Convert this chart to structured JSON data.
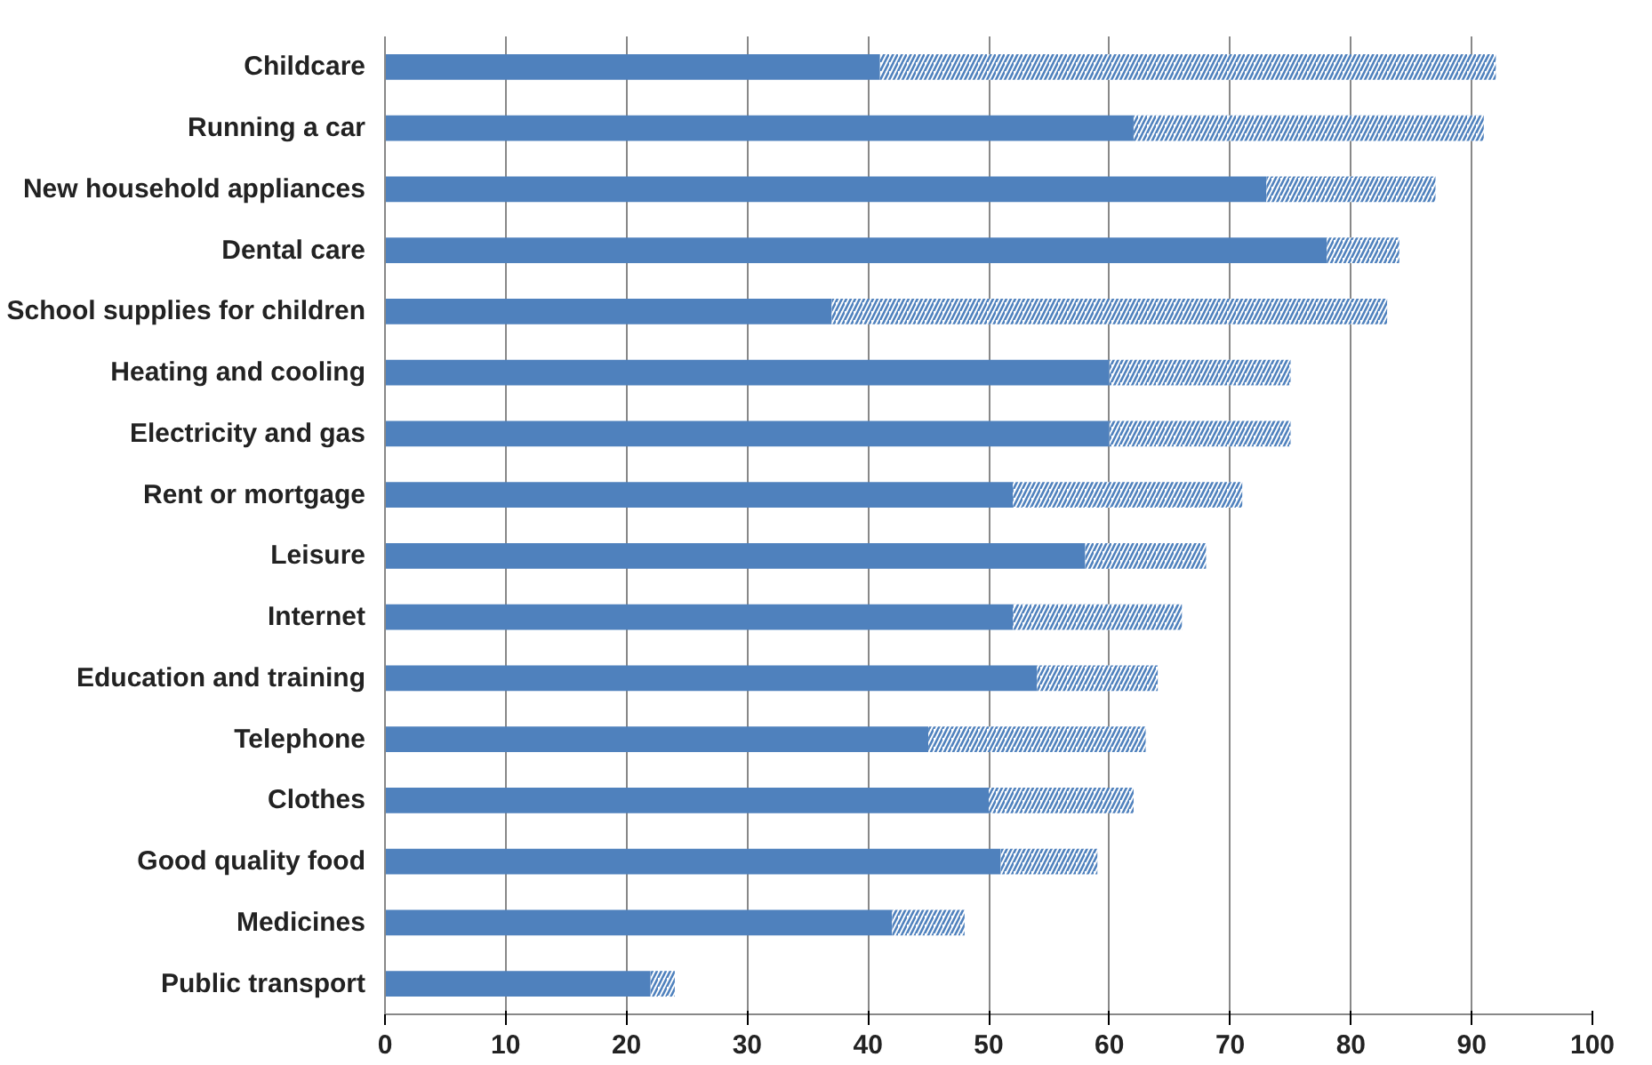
{
  "chart_data": {
    "type": "bar",
    "orientation": "horizontal",
    "stacked": true,
    "categories": [
      "Childcare",
      "Running a car",
      "New household appliances",
      "Dental care",
      "School supplies for children",
      "Heating and cooling",
      "Electricity and gas",
      "Rent or mortgage",
      "Leisure",
      "Internet",
      "Education and training",
      "Telephone",
      "Clothes",
      "Good quality food",
      "Medicines",
      "Public transport"
    ],
    "series": [
      {
        "color": "#4f81bd",
        "values": [
          41,
          62,
          73,
          78,
          37,
          60,
          60,
          52,
          58,
          52,
          54,
          45,
          50,
          51,
          42,
          22
        ]
      },
      {
        "color": "#4f81bd",
        "values": [
          51,
          29,
          14,
          6,
          46,
          15,
          15,
          19,
          10,
          14,
          10,
          18,
          12,
          8,
          6,
          2
        ]
      }
    ],
    "xlim": [
      0,
      100
    ],
    "xticks": [
      0,
      10,
      20,
      30,
      40,
      50,
      60,
      70,
      80,
      90,
      100
    ],
    "grid": "x"
  }
}
